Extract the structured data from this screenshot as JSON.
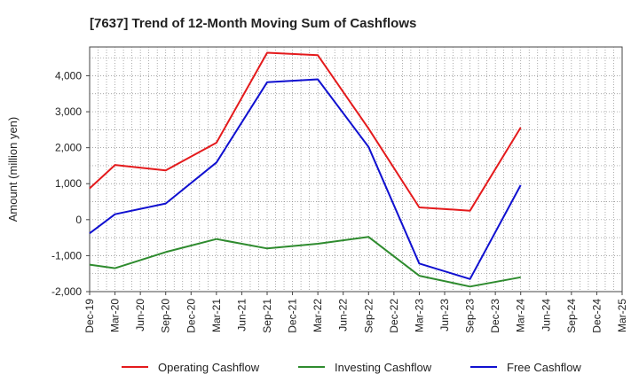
{
  "chart_data": {
    "type": "line",
    "title": "[7637]  Trend of 12-Month Moving Sum of Cashflows",
    "xlabel": "",
    "ylabel": "Amount (million yen)",
    "ylim": [
      -2000,
      4800
    ],
    "yticks": [
      -2000,
      -1000,
      0,
      1000,
      2000,
      3000,
      4000
    ],
    "ytick_labels": [
      "-2,000",
      "-1,000",
      "0",
      "1,000",
      "2,000",
      "3,000",
      "4,000"
    ],
    "categories": [
      "Dec-19",
      "Mar-20",
      "Jun-20",
      "Sep-20",
      "Dec-20",
      "Mar-21",
      "Jun-21",
      "Sep-21",
      "Dec-21",
      "Mar-22",
      "Jun-22",
      "Sep-22",
      "Dec-22",
      "Mar-23",
      "Jun-23",
      "Sep-23",
      "Dec-23",
      "Mar-24",
      "Jun-24",
      "Sep-24",
      "Dec-24",
      "Mar-25"
    ],
    "grid": true,
    "legend_position": "bottom",
    "series": [
      {
        "name": "Operating Cashflow",
        "color": "#e41a1c",
        "values": [
          870,
          1520,
          null,
          1370,
          null,
          2140,
          null,
          4640,
          null,
          4570,
          null,
          2530,
          null,
          340,
          null,
          250,
          null,
          2560,
          null,
          null,
          null,
          null
        ]
      },
      {
        "name": "Investing Cashflow",
        "color": "#2e8b2e",
        "values": [
          -1250,
          -1350,
          null,
          -900,
          null,
          -540,
          null,
          -800,
          null,
          -670,
          null,
          -480,
          null,
          -1560,
          null,
          -1860,
          null,
          -1600,
          null,
          null,
          null,
          null
        ]
      },
      {
        "name": "Free Cashflow",
        "color": "#1010d0",
        "values": [
          -380,
          150,
          null,
          450,
          null,
          1590,
          null,
          3820,
          null,
          3900,
          null,
          2020,
          null,
          -1220,
          null,
          -1650,
          null,
          960,
          null,
          null,
          null,
          null
        ]
      }
    ]
  }
}
